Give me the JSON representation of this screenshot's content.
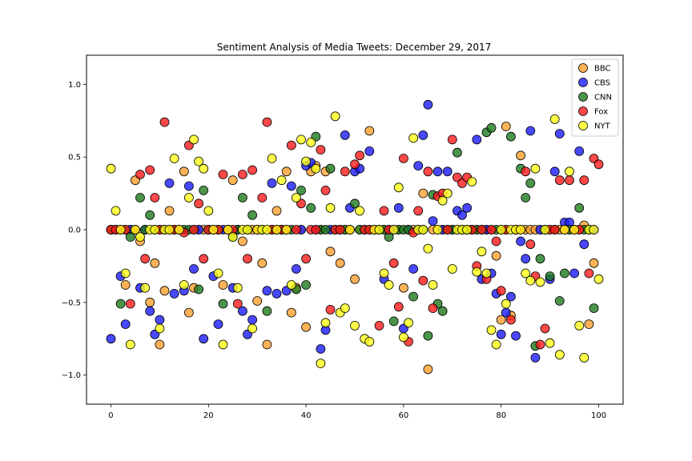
{
  "chart_data": {
    "type": "scatter",
    "title": "Sentiment Analysis of Media Tweets: December 29, 2017",
    "xlabel": "",
    "ylabel": "",
    "xlim": [
      -5,
      105
    ],
    "ylim": [
      -1.2,
      1.2
    ],
    "xticks": [
      0,
      20,
      40,
      60,
      80,
      100
    ],
    "yticks": [
      -1.0,
      -0.5,
      0.0,
      0.5,
      1.0
    ],
    "xtick_labels": [
      "0",
      "20",
      "40",
      "60",
      "80",
      "100"
    ],
    "ytick_labels": [
      "−1.0",
      "−0.5",
      "0.0",
      "0.5",
      "1.0"
    ],
    "grid": false,
    "legend_position": "top-right",
    "series": [
      {
        "name": "BBC",
        "color": "#ffa02e",
        "values": [
          0,
          0,
          0,
          -0.38,
          0,
          0.34,
          -0.08,
          0,
          -0.5,
          -0.23,
          -0.79,
          -0.42,
          0.13,
          0,
          0,
          0.4,
          -0.57,
          -0.4,
          0,
          0,
          0,
          0,
          0,
          -0.38,
          0,
          0.34,
          0,
          -0.08,
          0,
          0,
          -0.49,
          -0.23,
          -0.79,
          0,
          0.13,
          0,
          0.4,
          -0.57,
          -0.4,
          0,
          -0.67,
          0.4,
          0.44,
          0,
          0.4,
          -0.15,
          0,
          -0.23,
          0,
          0,
          -0.34,
          0,
          0,
          0.68,
          0,
          0,
          0,
          0,
          0,
          0,
          -0.4,
          0,
          0,
          0,
          0.25,
          -0.96,
          0,
          0,
          0,
          0,
          0,
          0,
          0,
          0,
          0,
          0,
          0,
          0,
          0,
          -0.18,
          -0.62,
          0.71,
          -0.59,
          0,
          0.51,
          0,
          0,
          0,
          0,
          0,
          0,
          0,
          0,
          0,
          0,
          0,
          0,
          0.03,
          -0.65,
          -0.23
        ]
      },
      {
        "name": "CBS",
        "color": "#1a1aff",
        "values": [
          -0.75,
          0,
          -0.32,
          -0.65,
          0,
          0,
          -0.4,
          0,
          -0.56,
          -0.72,
          -0.62,
          0,
          0.32,
          -0.44,
          0,
          -0.42,
          0.3,
          -0.27,
          0,
          -0.75,
          0,
          -0.32,
          -0.65,
          0,
          0,
          -0.4,
          0,
          -0.56,
          -0.72,
          -0.62,
          0,
          0,
          -0.42,
          0.32,
          -0.44,
          0,
          -0.42,
          0.3,
          -0.27,
          0,
          0.44,
          0.46,
          0,
          -0.82,
          -0.69,
          0,
          0,
          0,
          0.65,
          0.15,
          0.4,
          0.42,
          0,
          0.54,
          0,
          0,
          -0.34,
          0,
          0,
          0.15,
          -0.68,
          0,
          -0.27,
          0.44,
          0.65,
          0.86,
          0.06,
          0.4,
          0,
          0.4,
          0,
          0.13,
          0.1,
          0.15,
          0,
          0.62,
          -0.34,
          0,
          -0.3,
          -0.44,
          -0.72,
          -0.57,
          -0.46,
          -0.73,
          -0.08,
          -0.2,
          0.68,
          -0.88,
          0,
          0,
          -0.34,
          0.4,
          0.66,
          0.05,
          0.05,
          -0.3,
          0.54,
          -0.1,
          0,
          0
        ]
      },
      {
        "name": "CNN",
        "color": "#1e7a1e",
        "values": [
          0,
          0,
          -0.51,
          0,
          -0.05,
          0,
          0.22,
          0,
          0.1,
          0,
          0,
          0,
          0,
          0,
          0,
          0,
          0,
          0,
          -0.41,
          0.27,
          0,
          0,
          0,
          -0.51,
          0,
          -0.05,
          0,
          0.22,
          0,
          0.1,
          0,
          0,
          -0.56,
          0,
          0,
          0,
          0,
          0,
          -0.41,
          0.27,
          -0.38,
          0.15,
          0.64,
          0,
          0,
          0.42,
          0,
          0,
          0,
          0,
          0.18,
          0,
          0,
          0,
          0,
          0,
          0,
          -0.05,
          -0.63,
          0,
          0,
          0,
          -0.46,
          0,
          0,
          -0.73,
          0.24,
          -0.51,
          -0.56,
          0,
          0,
          0.53,
          0,
          0,
          0,
          0,
          0,
          0.67,
          0.7,
          0,
          0,
          0,
          0.64,
          0,
          0.42,
          0.22,
          0.32,
          -0.8,
          -0.2,
          0,
          -0.32,
          0,
          -0.49,
          -0.3,
          0,
          0,
          0.15,
          0,
          0,
          -0.54
        ]
      },
      {
        "name": "Fox",
        "color": "#ff1a1a",
        "values": [
          0,
          0,
          0,
          0,
          -0.51,
          0,
          0.38,
          -0.2,
          0.41,
          0.22,
          0,
          0.74,
          0,
          0,
          0,
          -0.02,
          0.58,
          0,
          0.18,
          -0.2,
          0,
          0,
          0,
          0.38,
          0,
          0,
          -0.51,
          0.38,
          -0.2,
          0.41,
          0,
          0.22,
          0.74,
          0,
          0,
          0,
          0,
          0.58,
          0,
          0.18,
          -0.2,
          0,
          0,
          0.55,
          0.27,
          -0.55,
          0,
          0,
          0.4,
          0,
          0.45,
          0.51,
          0,
          0,
          0,
          -0.66,
          0.13,
          0,
          -0.23,
          -0.53,
          0.49,
          -0.77,
          -0.02,
          0.13,
          -0.35,
          0.4,
          -0.54,
          0.23,
          0.25,
          0,
          0.62,
          0.36,
          0.32,
          0.36,
          0,
          -0.25,
          0,
          -0.34,
          0,
          -0.08,
          -0.42,
          0,
          -0.62,
          0,
          0,
          0.4,
          -0.1,
          -0.32,
          -0.79,
          -0.68,
          0,
          0,
          0.34,
          0,
          0.34,
          0,
          0,
          0.34,
          -0.3,
          0.49,
          0.45
        ]
      },
      {
        "name": "NYT",
        "color": "#ffff1a",
        "values": [
          0.42,
          0.13,
          0,
          -0.3,
          -0.79,
          0,
          -0.05,
          -0.4,
          0,
          0,
          -0.68,
          0,
          0,
          0.49,
          0,
          -0.38,
          0.22,
          0.62,
          0.47,
          0.42,
          0.13,
          0,
          -0.3,
          -0.79,
          0,
          -0.05,
          -0.4,
          0,
          0,
          -0.68,
          0,
          0,
          0,
          0.49,
          0,
          0.34,
          0,
          -0.38,
          0.22,
          0.62,
          0.47,
          0.6,
          0.42,
          -0.92,
          -0.64,
          0.15,
          0.78,
          -0.57,
          -0.54,
          0,
          -0.66,
          0.13,
          -0.75,
          -0.77,
          0,
          0,
          -0.3,
          -0.38,
          0,
          0.29,
          -0.74,
          -0.64,
          0.63,
          0,
          0,
          -0.13,
          -0.38,
          0,
          0.2,
          0.25,
          -0.27,
          0,
          0,
          0,
          0.33,
          -0.29,
          -0.15,
          -0.3,
          -0.69,
          -0.79,
          0,
          -0.51,
          0,
          0,
          0,
          -0.3,
          -0.35,
          0.42,
          -0.36,
          0,
          -0.78,
          0.76,
          -0.86,
          0,
          0.4,
          0,
          -0.66,
          -0.88,
          0,
          0,
          -0.34
        ]
      }
    ]
  }
}
